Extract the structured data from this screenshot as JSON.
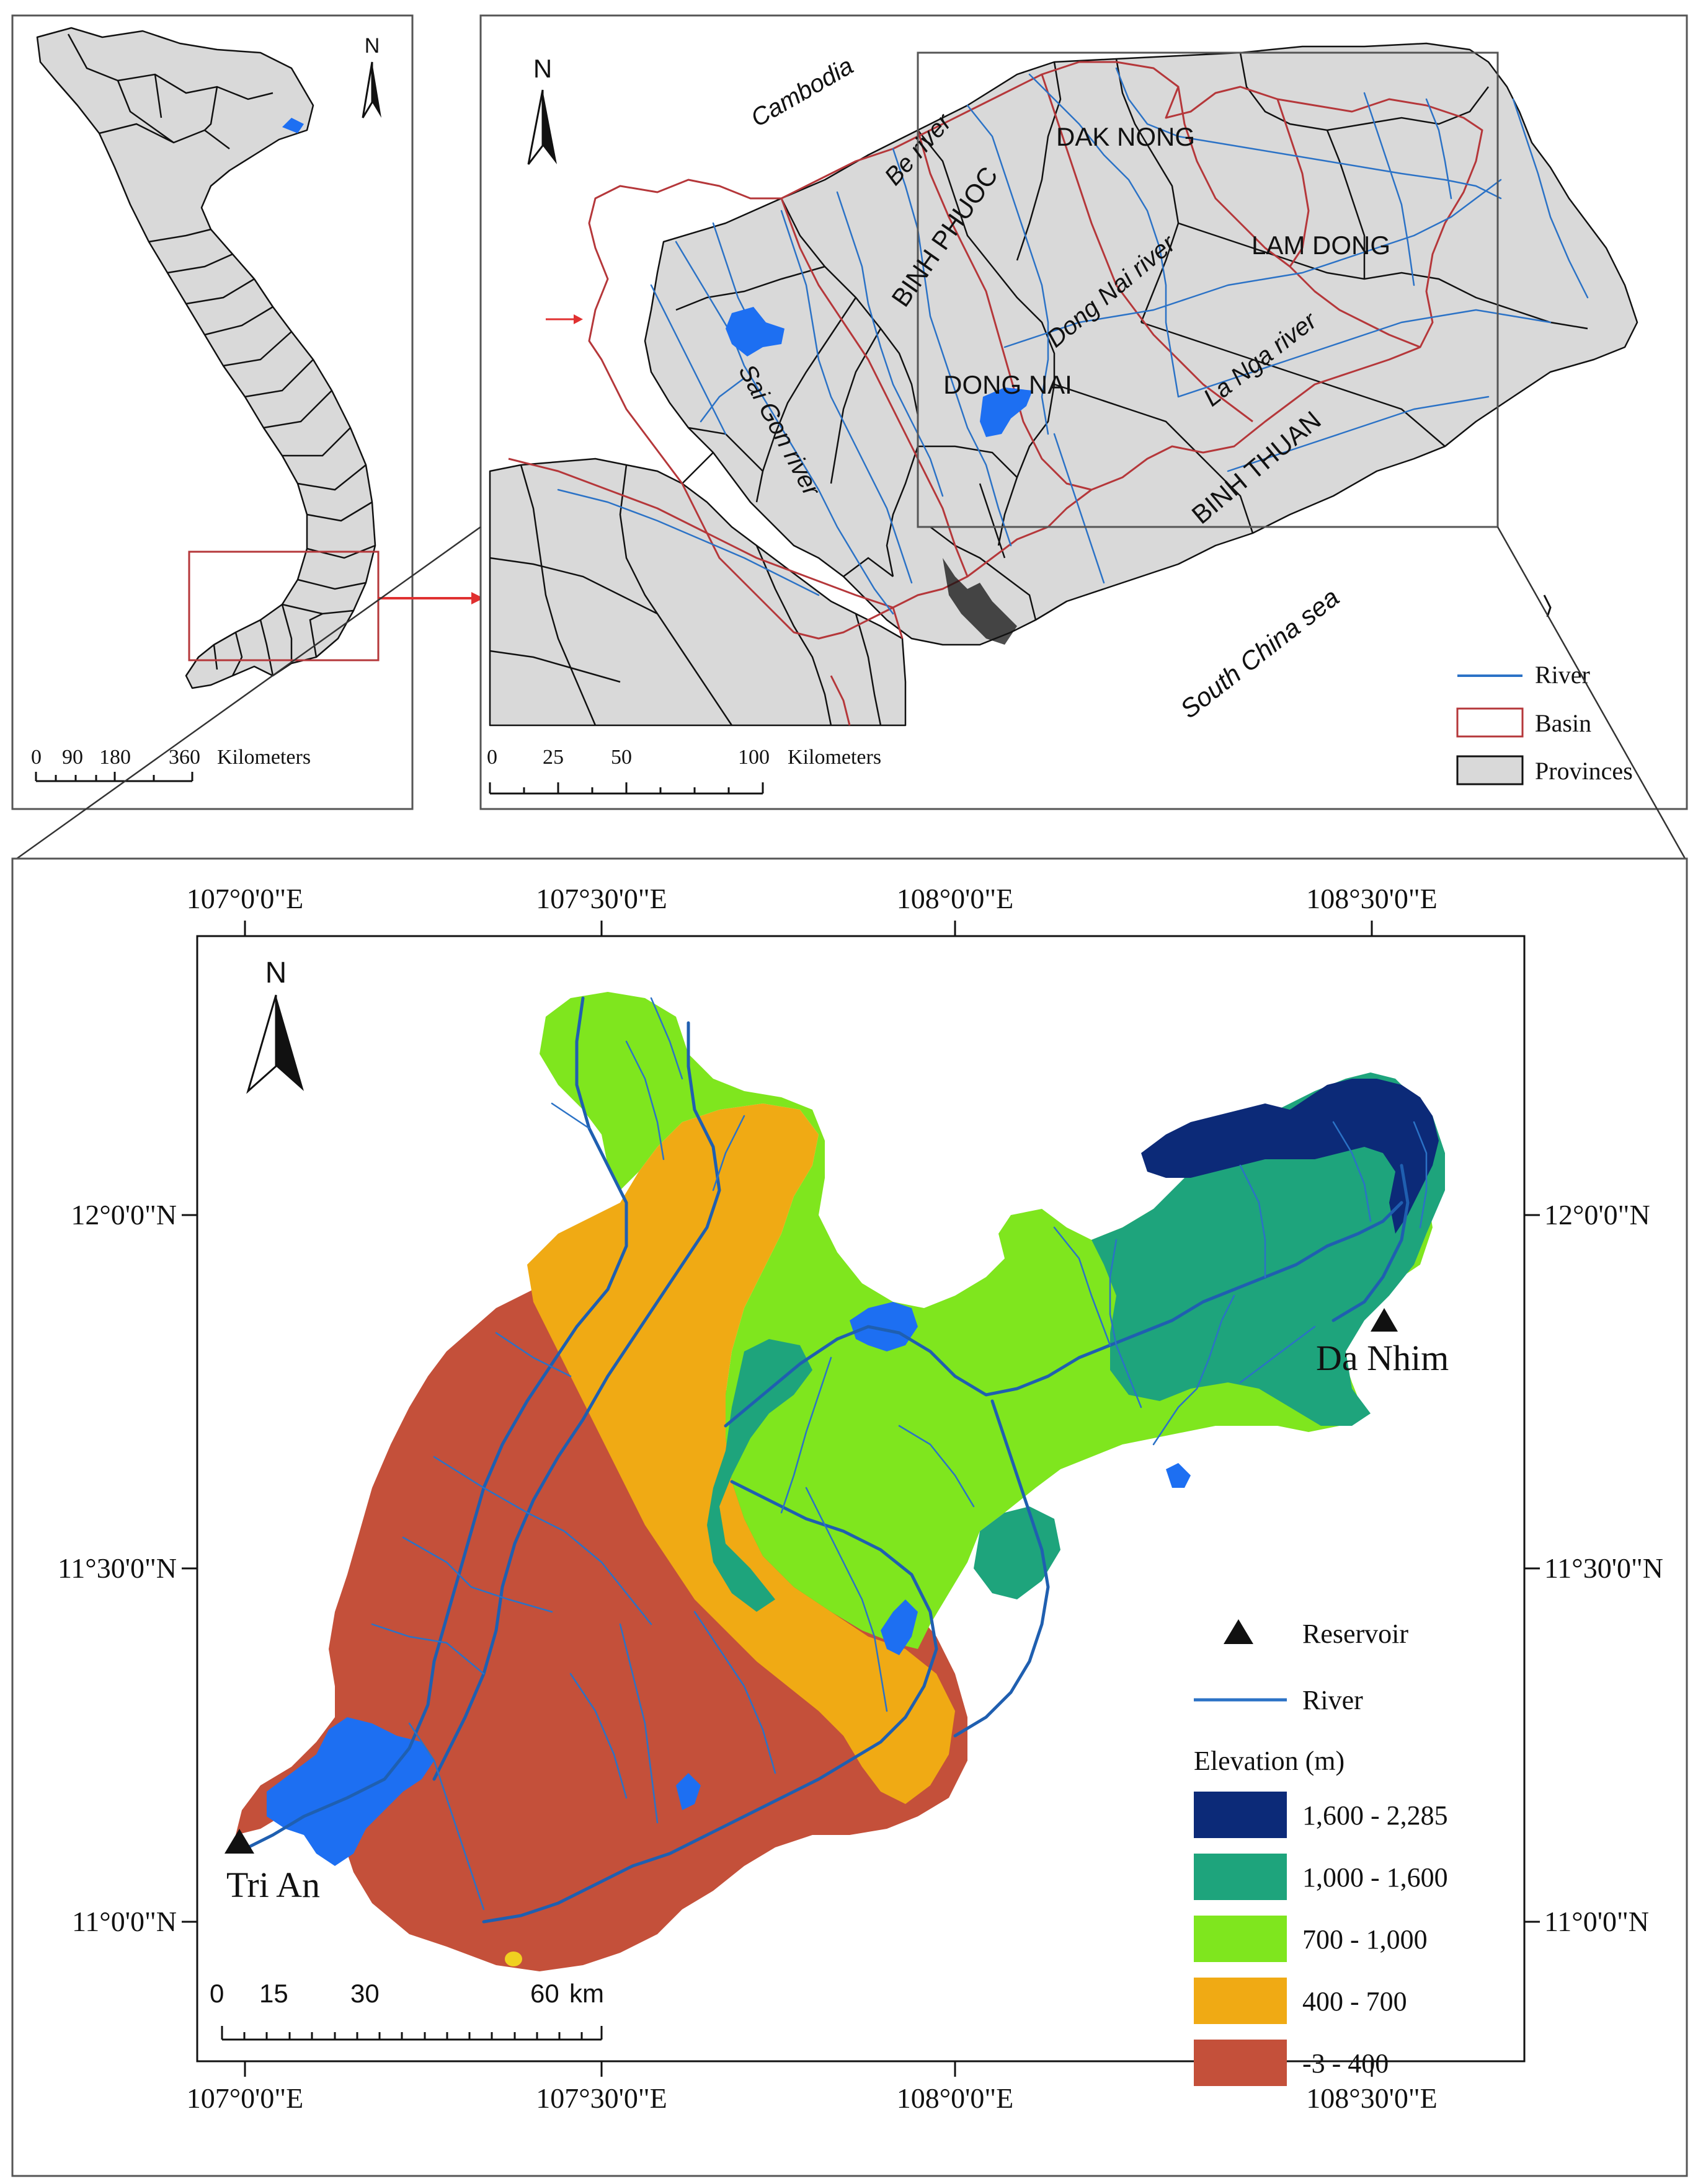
{
  "vietnam_panel": {
    "north_label": "N",
    "scale": {
      "ticks": [
        "0",
        "90",
        "180",
        "360"
      ],
      "unit": "Kilometers"
    }
  },
  "region_panel": {
    "north_label": "N",
    "labels": {
      "cambodia": "Cambodia",
      "be_river": "Be river",
      "dak_nong": "DAK NONG",
      "binh_phuoc": "BINH PHUOC",
      "lam_dong": "LAM DONG",
      "dong_nai_river": "Dong Nai river",
      "la_nga_river": "La Nga river",
      "dong_nai": "DONG NAI",
      "sai_gon_river": "Sai Gon river",
      "binh_thuan": "BINH THUAN",
      "south_china_sea": "South China sea"
    },
    "legend": [
      {
        "label": "River",
        "color": "#2b72c6",
        "symbol": "line"
      },
      {
        "label": "Basin",
        "color": "#b5373a",
        "symbol": "outline"
      },
      {
        "label": "Provinces",
        "color": "#d9d9d9",
        "symbol": "fill"
      }
    ],
    "scale": {
      "ticks": [
        "0",
        "25",
        "50",
        "100"
      ],
      "unit": "Kilometers"
    }
  },
  "elevation_panel": {
    "north_label": "N",
    "longitudes_top": [
      "107°0'0\"E",
      "107°30'0\"E",
      "108°0'0\"E",
      "108°30'0\"E"
    ],
    "longitudes_bottom": [
      "107°0'0\"E",
      "107°30'0\"E",
      "108°0'0\"E",
      "108°30'0\"E"
    ],
    "latitudes_left": [
      "12°0'0\"N",
      "11°30'0\"N",
      "11°0'0\"N"
    ],
    "latitudes_right": [
      "12°0'0\"N",
      "11°30'0\"N",
      "11°0'0\"N"
    ],
    "reservoirs": [
      "Da Nhim",
      "Tri An"
    ],
    "legend": {
      "reservoir_label": "Reservoir",
      "river_label": "River",
      "elevation_title": "Elevation (m)",
      "classes": [
        {
          "label": "1,600 - 2,285",
          "color": "#0c2a78"
        },
        {
          "label": "1,000 - 1,600",
          "color": "#1ea47c"
        },
        {
          "label": "700 - 1,000",
          "color": "#7fe61e"
        },
        {
          "label": "400 - 700",
          "color": "#f0aa14"
        },
        {
          "label": "-3 - 400",
          "color": "#c4503a"
        }
      ]
    },
    "scale": {
      "ticks": [
        "0",
        "15",
        "30",
        "60"
      ],
      "unit": "km"
    }
  }
}
